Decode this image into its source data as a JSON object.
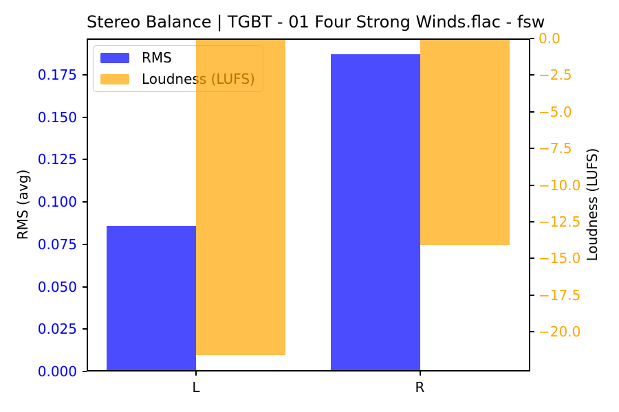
{
  "chart_data": {
    "type": "bar",
    "title": "Stereo Balance | TGBT - 01 Four Strong Winds.flac - fsw",
    "categories": [
      "L",
      "R"
    ],
    "series": [
      {
        "name": "RMS",
        "axis": "left",
        "values": [
          0.086,
          0.187
        ],
        "color": "rgba(0,0,255,0.7)"
      },
      {
        "name": "Loudness (LUFS)",
        "axis": "right",
        "values": [
          -21.6,
          -14.1
        ],
        "color": "rgba(255,165,0,0.7)"
      }
    ],
    "left_axis": {
      "label": "RMS (avg)",
      "color": "#0000ff",
      "lim": [
        0,
        0.1965
      ],
      "tick_values": [
        0.0,
        0.025,
        0.05,
        0.075,
        0.1,
        0.125,
        0.15,
        0.175
      ],
      "tick_labels": [
        "0.000",
        "0.025",
        "0.050",
        "0.075",
        "0.100",
        "0.125",
        "0.150",
        "0.175"
      ]
    },
    "right_axis": {
      "label": "Loudness (LUFS)",
      "color": "#ffa500",
      "lim": [
        -22.7,
        0
      ],
      "tick_values": [
        0.0,
        -2.5,
        -5.0,
        -7.5,
        -10.0,
        -12.5,
        -15.0,
        -17.5,
        -20.0
      ],
      "tick_labels": [
        "0.0",
        "−2.5",
        "−5.0",
        "−7.5",
        "−10.0",
        "−12.5",
        "−15.0",
        "−17.5",
        "−20.0"
      ]
    },
    "legend": {
      "position": "upper left",
      "entries": [
        "RMS",
        "Loudness (LUFS)"
      ]
    },
    "grid": false,
    "background": "#ffffff"
  }
}
